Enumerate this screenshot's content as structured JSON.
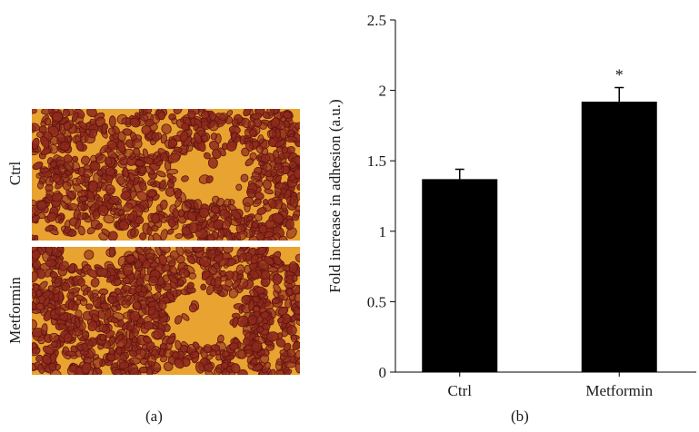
{
  "panel_a": {
    "row_labels": [
      "Ctrl",
      "Metformin"
    ],
    "caption": "(a)",
    "colors": {
      "background": "#e8a331",
      "cell": "#8f2a1c",
      "cell_edge": "#5e1410"
    },
    "image_description_kind": "micrograph"
  },
  "panel_b": {
    "caption": "(b)"
  },
  "chart_data": {
    "type": "bar",
    "categories": [
      "Ctrl",
      "Metformin"
    ],
    "values": [
      1.37,
      1.92
    ],
    "error": [
      0.07,
      0.1
    ],
    "annotations": [
      "",
      "*"
    ],
    "title": "",
    "xlabel": "",
    "ylabel": "Fold increase in adhesion (a.u.)",
    "ylim": [
      0,
      2.5
    ],
    "yticks": [
      0,
      0.5,
      1,
      1.5,
      2,
      2.5
    ],
    "ytick_labels": [
      "0",
      "0.5",
      "1",
      "1.5",
      "2",
      "2.5"
    ],
    "bar_color": "#000000",
    "grid": false,
    "legend": "none"
  }
}
